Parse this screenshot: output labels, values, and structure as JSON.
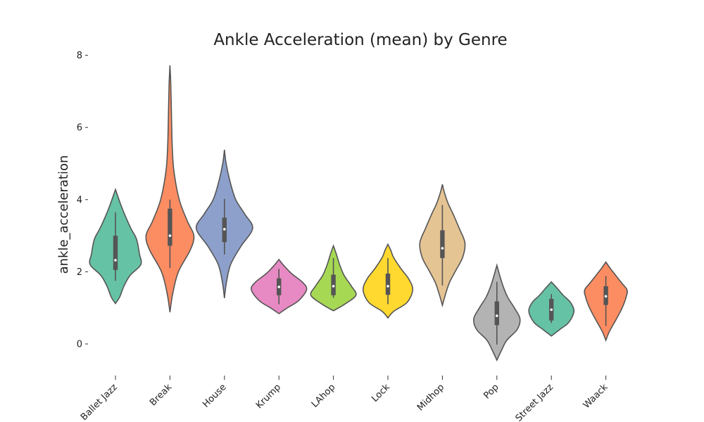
{
  "chart_data": {
    "type": "violin",
    "title": "Ankle Acceleration (mean) by Genre",
    "xlabel": "",
    "ylabel": "ankle_acceleration",
    "ylim": [
      -0.8,
      8.0
    ],
    "yticks": [
      0,
      2,
      4,
      6,
      8
    ],
    "grid": false,
    "legend": "none",
    "categories": [
      "Ballet Jazz",
      "Break",
      "House",
      "Krump",
      "LAhop",
      "Lock",
      "Midhop",
      "Pop",
      "Street Jazz",
      "Waack"
    ],
    "series": [
      {
        "color": "#66c2a5",
        "min": 1.12,
        "max": 4.28,
        "q1": 2.05,
        "median": 2.32,
        "q3": 3.0,
        "whisker_low": 1.75,
        "whisker_high": 3.65,
        "profile": [
          [
            1.12,
            0.0
          ],
          [
            1.3,
            0.15
          ],
          [
            1.6,
            0.3
          ],
          [
            1.9,
            0.52
          ],
          [
            2.2,
            0.9
          ],
          [
            2.5,
            0.85
          ],
          [
            2.9,
            0.75
          ],
          [
            3.2,
            0.55
          ],
          [
            3.6,
            0.32
          ],
          [
            3.9,
            0.17
          ],
          [
            4.1,
            0.08
          ],
          [
            4.28,
            0.0
          ]
        ]
      },
      {
        "color": "#fc8d62",
        "min": 0.88,
        "max": 7.72,
        "q1": 2.72,
        "median": 3.0,
        "q3": 3.75,
        "whisker_low": 2.1,
        "whisker_high": 4.0,
        "profile": [
          [
            0.88,
            0.0
          ],
          [
            1.4,
            0.1
          ],
          [
            2.0,
            0.3
          ],
          [
            2.6,
            0.72
          ],
          [
            3.0,
            0.85
          ],
          [
            3.4,
            0.62
          ],
          [
            4.0,
            0.33
          ],
          [
            4.8,
            0.14
          ],
          [
            5.5,
            0.08
          ],
          [
            6.5,
            0.05
          ],
          [
            7.2,
            0.03
          ],
          [
            7.72,
            0.0
          ]
        ]
      },
      {
        "color": "#8da0cb",
        "min": 1.27,
        "max": 5.38,
        "q1": 2.82,
        "median": 3.18,
        "q3": 3.5,
        "whisker_low": 2.48,
        "whisker_high": 4.02,
        "profile": [
          [
            1.27,
            0.0
          ],
          [
            1.7,
            0.07
          ],
          [
            2.2,
            0.22
          ],
          [
            2.7,
            0.58
          ],
          [
            3.2,
            1.0
          ],
          [
            3.6,
            0.72
          ],
          [
            4.0,
            0.4
          ],
          [
            4.5,
            0.2
          ],
          [
            5.0,
            0.06
          ],
          [
            5.38,
            0.0
          ]
        ]
      },
      {
        "color": "#e78ac3",
        "min": 0.84,
        "max": 2.34,
        "q1": 1.35,
        "median": 1.58,
        "q3": 1.82,
        "whisker_low": 1.1,
        "whisker_high": 2.08,
        "profile": [
          [
            0.84,
            0.0
          ],
          [
            1.0,
            0.3
          ],
          [
            1.2,
            0.7
          ],
          [
            1.5,
            0.98
          ],
          [
            1.7,
            0.85
          ],
          [
            1.95,
            0.45
          ],
          [
            2.15,
            0.2
          ],
          [
            2.34,
            0.0
          ]
        ]
      },
      {
        "color": "#a6d854",
        "min": 0.92,
        "max": 2.72,
        "q1": 1.35,
        "median": 1.6,
        "q3": 1.92,
        "whisker_low": 1.28,
        "whisker_high": 2.38,
        "profile": [
          [
            0.92,
            0.0
          ],
          [
            1.1,
            0.4
          ],
          [
            1.35,
            0.8
          ],
          [
            1.6,
            0.64
          ],
          [
            1.9,
            0.38
          ],
          [
            2.2,
            0.22
          ],
          [
            2.5,
            0.1
          ],
          [
            2.72,
            0.0
          ]
        ]
      },
      {
        "color": "#ffd92f",
        "min": 0.72,
        "max": 2.76,
        "q1": 1.36,
        "median": 1.6,
        "q3": 1.95,
        "whisker_low": 1.1,
        "whisker_high": 2.38,
        "profile": [
          [
            0.72,
            0.0
          ],
          [
            0.9,
            0.2
          ],
          [
            1.15,
            0.68
          ],
          [
            1.5,
            0.88
          ],
          [
            1.8,
            0.74
          ],
          [
            2.1,
            0.45
          ],
          [
            2.4,
            0.2
          ],
          [
            2.6,
            0.1
          ],
          [
            2.76,
            0.0
          ]
        ]
      },
      {
        "color": "#e5c494",
        "min": 1.07,
        "max": 4.42,
        "q1": 2.38,
        "median": 2.65,
        "q3": 3.15,
        "whisker_low": 1.62,
        "whisker_high": 3.85,
        "profile": [
          [
            1.07,
            0.0
          ],
          [
            1.4,
            0.12
          ],
          [
            1.7,
            0.25
          ],
          [
            2.0,
            0.45
          ],
          [
            2.4,
            0.72
          ],
          [
            2.8,
            0.8
          ],
          [
            3.2,
            0.6
          ],
          [
            3.6,
            0.38
          ],
          [
            3.9,
            0.2
          ],
          [
            4.2,
            0.07
          ],
          [
            4.42,
            0.0
          ]
        ]
      },
      {
        "color": "#b3b3b3",
        "min": -0.45,
        "max": 2.18,
        "q1": 0.52,
        "median": 0.78,
        "q3": 1.18,
        "whisker_low": -0.02,
        "whisker_high": 1.72,
        "profile": [
          [
            -0.45,
            0.0
          ],
          [
            -0.2,
            0.15
          ],
          [
            0.1,
            0.35
          ],
          [
            0.4,
            0.72
          ],
          [
            0.7,
            0.82
          ],
          [
            1.0,
            0.62
          ],
          [
            1.3,
            0.38
          ],
          [
            1.6,
            0.22
          ],
          [
            1.9,
            0.1
          ],
          [
            2.18,
            0.0
          ]
        ]
      },
      {
        "color": "#66c2a5",
        "min": 0.22,
        "max": 1.72,
        "q1": 0.65,
        "median": 0.95,
        "q3": 1.25,
        "whisker_low": 0.58,
        "whisker_high": 1.38,
        "profile": [
          [
            0.22,
            0.0
          ],
          [
            0.4,
            0.3
          ],
          [
            0.6,
            0.62
          ],
          [
            0.9,
            0.8
          ],
          [
            1.15,
            0.68
          ],
          [
            1.35,
            0.42
          ],
          [
            1.55,
            0.2
          ],
          [
            1.72,
            0.0
          ]
        ]
      },
      {
        "color": "#fc8d62",
        "min": 0.1,
        "max": 2.27,
        "q1": 1.08,
        "median": 1.32,
        "q3": 1.6,
        "whisker_low": 0.5,
        "whisker_high": 1.88,
        "profile": [
          [
            0.1,
            0.0
          ],
          [
            0.35,
            0.13
          ],
          [
            0.7,
            0.38
          ],
          [
            1.0,
            0.58
          ],
          [
            1.3,
            0.72
          ],
          [
            1.5,
            0.75
          ],
          [
            1.7,
            0.55
          ],
          [
            1.95,
            0.3
          ],
          [
            2.1,
            0.15
          ],
          [
            2.27,
            0.0
          ]
        ]
      }
    ]
  }
}
